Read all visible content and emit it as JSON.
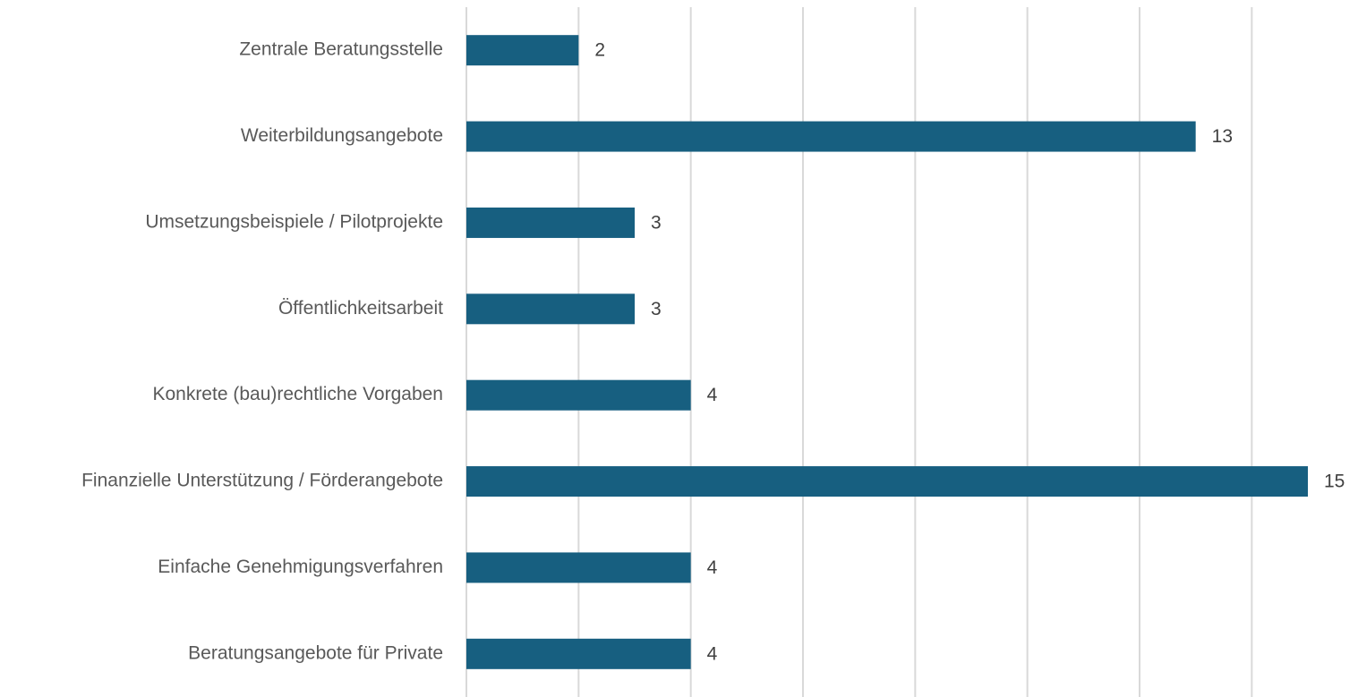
{
  "chart_data": {
    "type": "bar",
    "orientation": "horizontal",
    "categories": [
      "Zentrale Beratungsstelle",
      "Weiterbildungsangebote",
      "Umsetzungsbeispiele / Pilotprojekte",
      "Öffentlichkeitsarbeit",
      "Konkrete (bau)rechtliche Vorgaben",
      "Finanzielle Unterstützung / Förderangebote",
      "Einfache Genehmigungsverfahren",
      "Beratungsangebote für Private"
    ],
    "values": [
      2,
      13,
      3,
      3,
      4,
      15,
      4,
      4
    ],
    "color": "#175f80",
    "xlim": [
      0,
      15
    ],
    "xticks": [
      0,
      2,
      4,
      6,
      8,
      10,
      12,
      14
    ],
    "grid": true
  }
}
